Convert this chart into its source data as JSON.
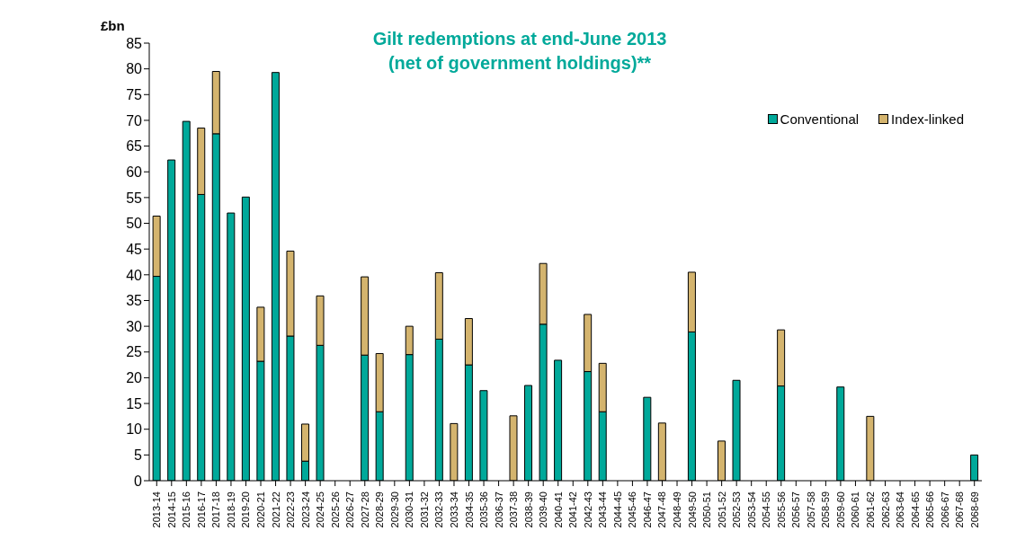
{
  "chart_data": {
    "type": "bar",
    "stacked": true,
    "title": "Gilt redemptions at end-June 2013\n(net of government holdings)**",
    "ylabel": "£bn",
    "categories": [
      "2013-14",
      "2014-15",
      "2015-16",
      "2016-17",
      "2017-18",
      "2018-19",
      "2019-20",
      "2020-21",
      "2021-22",
      "2022-23",
      "2023-24",
      "2024-25",
      "2025-26",
      "2026-27",
      "2027-28",
      "2028-29",
      "2029-30",
      "2030-31",
      "2031-32",
      "2032-33",
      "2033-34",
      "2034-35",
      "2035-36",
      "2036-37",
      "2037-38",
      "2038-39",
      "2039-40",
      "2040-41",
      "2041-42",
      "2042-43",
      "2043-44",
      "2044-45",
      "2045-46",
      "2046-47",
      "2047-48",
      "2048-49",
      "2049-50",
      "2050-51",
      "2051-52",
      "2052-53",
      "2053-54",
      "2054-55",
      "2055-56",
      "2056-57",
      "2057-58",
      "2058-59",
      "2059-60",
      "2060-61",
      "2061-62",
      "2062-63",
      "2063-64",
      "2064-65",
      "2065-66",
      "2066-67",
      "2067-68",
      "2068-69"
    ],
    "series": [
      {
        "name": "Conventional",
        "color": "#00a99a",
        "values": [
          39.7,
          62.3,
          69.8,
          55.6,
          67.4,
          52.0,
          55.1,
          23.2,
          79.3,
          28.1,
          3.8,
          26.3,
          null,
          null,
          24.4,
          13.4,
          null,
          24.5,
          null,
          27.5,
          null,
          22.5,
          17.5,
          null,
          null,
          18.5,
          30.4,
          23.4,
          null,
          21.2,
          13.4,
          null,
          null,
          16.2,
          null,
          null,
          28.9,
          null,
          null,
          19.5,
          null,
          null,
          18.4,
          null,
          null,
          null,
          18.2,
          null,
          null,
          null,
          null,
          null,
          null,
          null,
          null,
          5.0
        ]
      },
      {
        "name": "Index-linked",
        "color": "#d4b46e",
        "values": [
          11.7,
          null,
          null,
          12.9,
          12.1,
          null,
          null,
          10.5,
          null,
          16.5,
          7.2,
          9.6,
          null,
          null,
          15.2,
          11.3,
          null,
          5.5,
          null,
          12.9,
          11.1,
          9.0,
          null,
          null,
          12.6,
          null,
          11.8,
          null,
          null,
          11.1,
          9.4,
          null,
          null,
          null,
          11.2,
          null,
          11.6,
          null,
          7.7,
          null,
          null,
          null,
          10.9,
          null,
          null,
          null,
          null,
          null,
          12.5,
          null,
          null,
          null,
          null,
          null,
          null,
          null
        ]
      }
    ],
    "ylim": [
      0,
      85
    ],
    "yticks": [
      0,
      5,
      10,
      15,
      20,
      25,
      30,
      35,
      40,
      45,
      50,
      55,
      60,
      65,
      70,
      75,
      80,
      85
    ],
    "legend": "top right"
  }
}
